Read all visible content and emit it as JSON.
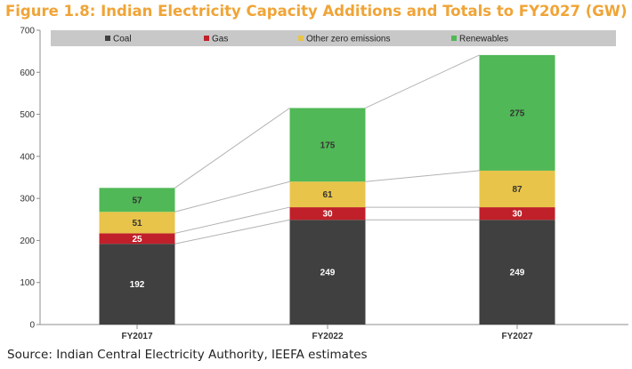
{
  "title": "Figure 1.8: Indian Electricity Capacity Additions and Totals to FY2027 (GW)",
  "source": "Source: Indian Central Electricity Authority, IEEFA estimates",
  "chart_data": {
    "type": "bar",
    "stacked": true,
    "title": "Figure 1.8: Indian Electricity Capacity Additions and Totals to FY2027 (GW)",
    "xlabel": "",
    "ylabel": "",
    "ylim": [
      0,
      700
    ],
    "yticks": [
      0,
      100,
      200,
      300,
      400,
      500,
      600,
      700
    ],
    "grid": false,
    "legend_position": "top",
    "categories": [
      "FY2017",
      "FY2022",
      "FY2027"
    ],
    "series": [
      {
        "name": "Coal",
        "color": "#404040",
        "label_color": "#ffffff",
        "values": [
          192,
          249,
          249
        ]
      },
      {
        "name": "Gas",
        "color": "#c0202a",
        "label_color": "#ffffff",
        "values": [
          25,
          30,
          30
        ]
      },
      {
        "name": "Other zero emissions",
        "color": "#e8c44a",
        "label_color": "#333333",
        "values": [
          51,
          61,
          87
        ]
      },
      {
        "name": "Renewables",
        "color": "#50b856",
        "label_color": "#333333",
        "values": [
          57,
          175,
          275
        ]
      }
    ]
  }
}
